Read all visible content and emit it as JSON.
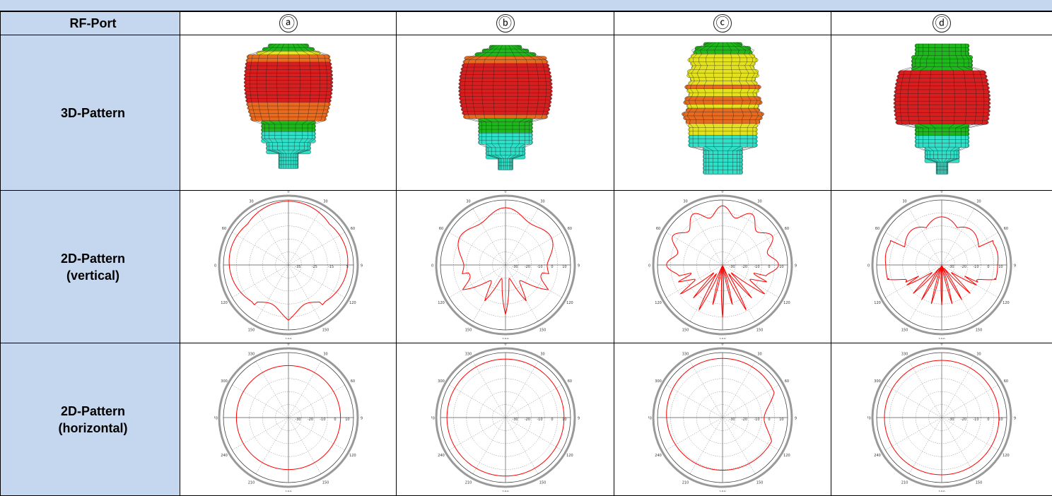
{
  "header_link": "",
  "columns": [
    "ⓐ",
    "ⓑ",
    "ⓒ",
    "ⓓ"
  ],
  "rows": {
    "rf_port": "RF-Port",
    "pattern_3d": "3D-Pattern",
    "pattern_2d_vertical": [
      "2D-Pattern",
      "(vertical)"
    ],
    "pattern_2d_horizontal": [
      "2D-Pattern",
      "(horizontal)"
    ]
  },
  "vertical_angle_labels": [
    "0",
    "30",
    "30",
    "60",
    "60",
    "90",
    "90",
    "120",
    "120",
    "150",
    "150",
    "180"
  ],
  "horizontal_angle_labels": [
    "0",
    "30",
    "330",
    "60",
    "300",
    "90",
    "270",
    "120",
    "240",
    "150",
    "210",
    "180"
  ],
  "vertical_radial_labels": {
    "a": [
      "-35",
      "-25",
      "-15",
      "5"
    ],
    "b": [
      "-30",
      "-20",
      "-10",
      "0",
      "10"
    ],
    "c": [
      "-30",
      "-20",
      "-10",
      "0",
      "10"
    ],
    "d": [
      "-30",
      "-20",
      "-10",
      "0",
      "10"
    ]
  },
  "horizontal_radial_labels": {
    "a": [
      "-30",
      "-20",
      "-10",
      "0",
      "10"
    ],
    "b": [
      "-30",
      "-20",
      "-10",
      "0",
      "10"
    ],
    "c": [
      "-30",
      "-20",
      "-10",
      "0",
      "10"
    ],
    "d": [
      "-30",
      "-20",
      "-10",
      "0",
      "10"
    ]
  },
  "colors": {
    "header_fill": "#c5d7ef",
    "link": "#1f4fd6",
    "pattern_trace": "#ff0000",
    "grid": "#888888",
    "mesh_hot": "#d81e1e",
    "mesh_mid": "#e4e21e",
    "mesh_low": "#1fb81c",
    "mesh_base": "#2ee0c8"
  }
}
